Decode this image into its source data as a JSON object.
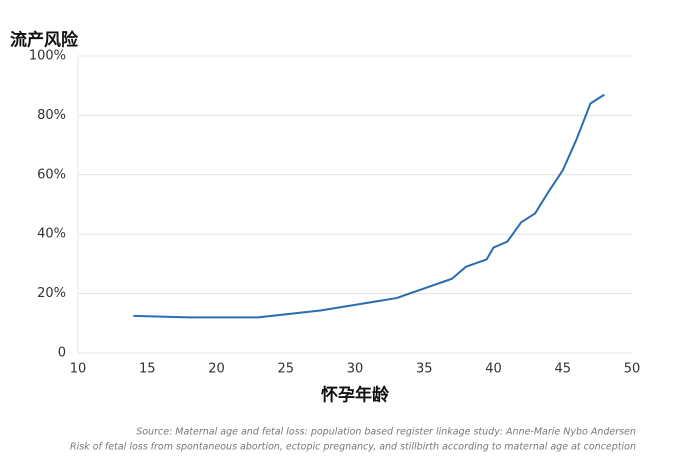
{
  "chart_data": {
    "type": "line",
    "y_label": "流产风险",
    "x_label": "怀孕年龄",
    "notes": [
      "Source: Maternal age and fetal loss: population based register linkage study: Anne-Marie Nybo Andersen",
      "Risk of fetal loss from spontaneous abortion, ectopic pregnancy, and stillbirth according to maternal age at conception"
    ],
    "x": [
      14,
      18,
      23,
      27.5,
      30,
      33,
      37,
      38,
      39.5,
      40,
      41,
      42,
      43,
      44,
      45,
      46,
      47,
      48
    ],
    "series": [
      {
        "color": "#2b6cb0",
        "values": [
          12.5,
          12,
          12,
          14.3,
          16.2,
          18.5,
          25,
          29,
          31.5,
          35.5,
          37.5,
          44,
          47,
          54.5,
          61.5,
          72,
          84,
          87
        ]
      }
    ],
    "xlim": [
      10,
      50
    ],
    "xticks": [
      10,
      15,
      20,
      25,
      30,
      35,
      40,
      45,
      50
    ],
    "ylim": [
      0,
      100
    ],
    "yticks": [
      0,
      {
        "value": 20,
        "label": "20%"
      },
      {
        "value": 40,
        "label": "40%"
      },
      {
        "value": 60,
        "label": "60%"
      },
      {
        "value": 80,
        "label": "80%"
      },
      {
        "value": 100,
        "label": "100%"
      }
    ],
    "grid": true
  }
}
